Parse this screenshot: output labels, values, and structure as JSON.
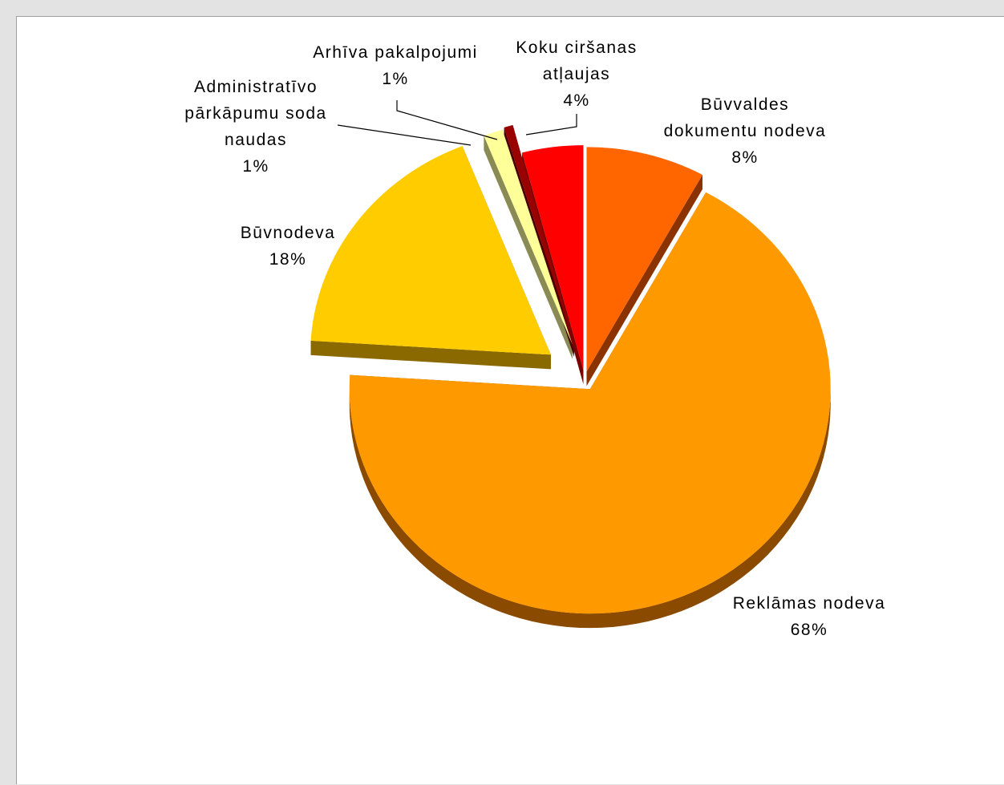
{
  "chart_data": {
    "type": "pie",
    "three_d": true,
    "exploded": true,
    "legend": "none",
    "slices": [
      {
        "label": [
          "Būvvaldes",
          "dokumentu nodeva"
        ],
        "percent_label": "8%",
        "value": 8,
        "color": "#ff6600",
        "side_color": "#8a3300"
      },
      {
        "label": [
          "Reklāmas nodeva"
        ],
        "percent_label": "68%",
        "value": 68,
        "color": "#ff9900",
        "side_color": "#8a4a00"
      },
      {
        "label": [
          "Būvnodeva"
        ],
        "percent_label": "18%",
        "value": 18,
        "color": "#ffcc00",
        "side_color": "#8a6a00"
      },
      {
        "label": [
          "Administratīvo",
          "pārkāpumu soda",
          "naudas"
        ],
        "percent_label": "1%",
        "value": 1.3,
        "color": "#ffff99",
        "side_color": "#8a8a55"
      },
      {
        "label": [
          "Arhīva pakalpojumi"
        ],
        "percent_label": "1%",
        "value": 0.6,
        "color": "#990000",
        "side_color": "#4a0000"
      },
      {
        "label": [
          "Koku ciršanas",
          "atļaujas"
        ],
        "percent_label": "4%",
        "value": 4.1,
        "color": "#ff0000",
        "side_color": "#7a0000"
      }
    ]
  }
}
